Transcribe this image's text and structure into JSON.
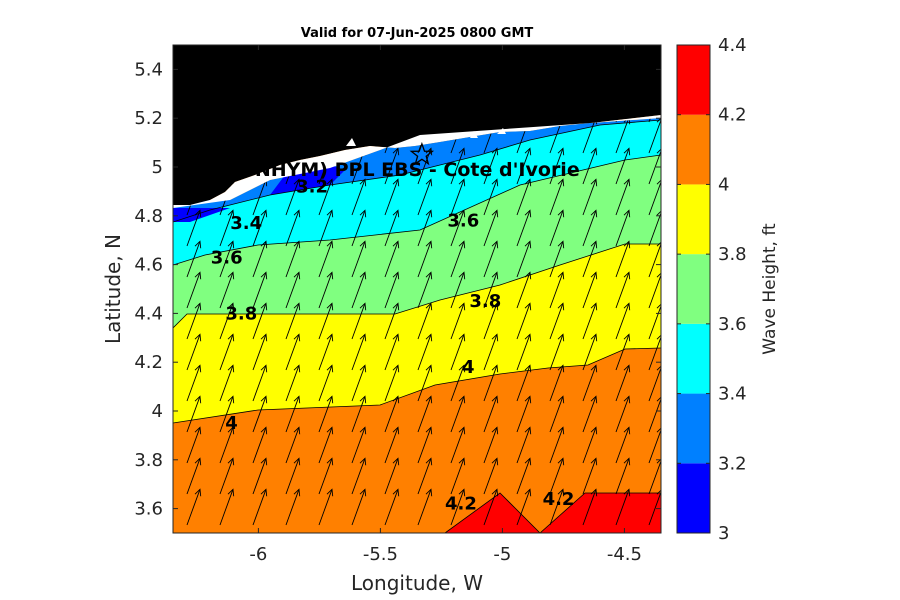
{
  "chart_data": {
    "type": "contour",
    "title": "Valid for 07-Jun-2025 0800 GMT",
    "xlabel": "Longitude, W",
    "ylabel": "Latitude, N",
    "xlim": [
      -6.35,
      -4.35
    ],
    "ylim": [
      3.5,
      5.5
    ],
    "xticks": [
      -6,
      -5.5,
      -5,
      -4.5
    ],
    "xtick_labels": [
      "-6",
      "-5.5",
      "-5",
      "-4.5"
    ],
    "yticks": [
      3.6,
      3.8,
      4,
      4.2,
      4.4,
      4.6,
      4.8,
      5,
      5.2,
      5.4
    ],
    "ytick_labels": [
      "3.6",
      "3.8",
      "4",
      "4.2",
      "4.4",
      "4.6",
      "4.8",
      "5",
      "5.2",
      "5.4"
    ],
    "site_label": "(ONHYM) PPL EBS  - Cote d'Ivorie",
    "site_marker": {
      "lon": -5.33,
      "lat": 5.05
    },
    "colorbar": {
      "label": "Wave Height, ft",
      "ticks": [
        3,
        3.2,
        3.4,
        3.6,
        3.8,
        4,
        4.2,
        4.4
      ],
      "tick_labels": [
        "3",
        "3.2",
        "3.4",
        "3.6",
        "3.8",
        "4",
        "4.2",
        "4.4"
      ],
      "levels": [
        3.0,
        3.2,
        3.4,
        3.6,
        3.8,
        4.0,
        4.2,
        4.4
      ],
      "colors": [
        "#0000ff",
        "#0080ff",
        "#00ffff",
        "#80ff80",
        "#ffff00",
        "#ff8000",
        "#ff0000"
      ]
    },
    "contour_labels": [
      {
        "text": "3.2",
        "lon": -5.78,
        "lat": 4.92
      },
      {
        "text": "3.4",
        "lon": -6.05,
        "lat": 4.77
      },
      {
        "text": "3.6",
        "lon": -5.16,
        "lat": 4.78
      },
      {
        "text": "3.6",
        "lon": -6.13,
        "lat": 4.63
      },
      {
        "text": "3.8",
        "lon": -6.07,
        "lat": 4.4
      },
      {
        "text": "3.8",
        "lon": -5.07,
        "lat": 4.45
      },
      {
        "text": "4",
        "lon": -5.14,
        "lat": 4.18
      },
      {
        "text": "4",
        "lon": -6.11,
        "lat": 3.95
      },
      {
        "text": "4.2",
        "lon": -5.17,
        "lat": 3.62
      },
      {
        "text": "4.2",
        "lon": -4.77,
        "lat": 3.64
      }
    ],
    "wave_direction_deg": 20,
    "grid": false
  }
}
